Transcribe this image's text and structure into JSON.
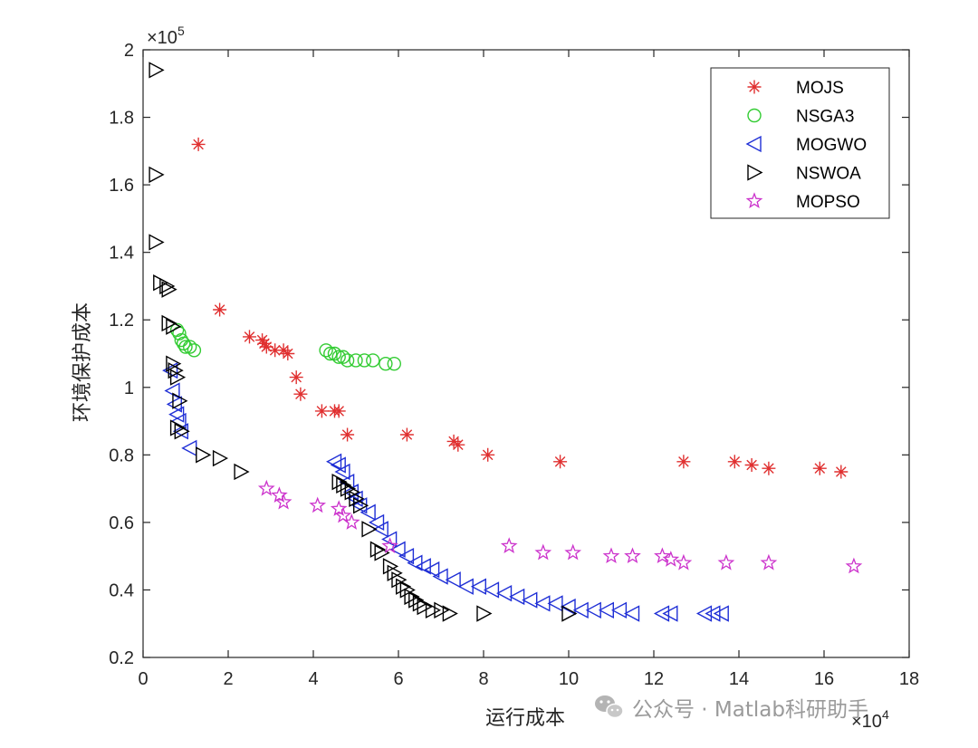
{
  "chart_data": {
    "type": "scatter",
    "title": "",
    "xlabel": "运行成本",
    "ylabel": "环境保护成本",
    "x_exponent": "×10",
    "x_exponent_power": "4",
    "y_exponent": "×10",
    "y_exponent_power": "5",
    "xlim": [
      0,
      18
    ],
    "ylim": [
      0.2,
      2
    ],
    "xticks": [
      "0",
      "2",
      "4",
      "6",
      "8",
      "10",
      "12",
      "14",
      "16",
      "18"
    ],
    "yticks": [
      "0.2",
      "0.4",
      "0.6",
      "0.8",
      "1",
      "1.2",
      "1.4",
      "1.6",
      "1.8",
      "2"
    ],
    "grid": false,
    "legend_position": "top-right",
    "series": [
      {
        "name": "MOJS",
        "marker": "asterisk",
        "color": "#e03030",
        "points": [
          [
            1.3,
            1.72
          ],
          [
            1.8,
            1.23
          ],
          [
            2.5,
            1.15
          ],
          [
            2.8,
            1.14
          ],
          [
            2.85,
            1.13
          ],
          [
            2.9,
            1.12
          ],
          [
            3.1,
            1.11
          ],
          [
            3.3,
            1.11
          ],
          [
            3.4,
            1.1
          ],
          [
            3.6,
            1.03
          ],
          [
            3.7,
            0.98
          ],
          [
            4.2,
            0.93
          ],
          [
            4.5,
            0.93
          ],
          [
            4.6,
            0.93
          ],
          [
            4.8,
            0.86
          ],
          [
            6.2,
            0.86
          ],
          [
            7.3,
            0.84
          ],
          [
            7.4,
            0.83
          ],
          [
            8.1,
            0.8
          ],
          [
            9.8,
            0.78
          ],
          [
            12.7,
            0.78
          ],
          [
            13.9,
            0.78
          ],
          [
            14.3,
            0.77
          ],
          [
            14.7,
            0.76
          ],
          [
            15.9,
            0.76
          ],
          [
            16.4,
            0.75
          ]
        ]
      },
      {
        "name": "NSGA3",
        "marker": "circle",
        "color": "#33cc33",
        "points": [
          [
            0.8,
            1.17
          ],
          [
            0.85,
            1.16
          ],
          [
            0.9,
            1.14
          ],
          [
            0.95,
            1.13
          ],
          [
            1.0,
            1.12
          ],
          [
            1.1,
            1.12
          ],
          [
            1.2,
            1.11
          ],
          [
            4.3,
            1.11
          ],
          [
            4.4,
            1.1
          ],
          [
            4.5,
            1.1
          ],
          [
            4.6,
            1.09
          ],
          [
            4.7,
            1.09
          ],
          [
            4.8,
            1.08
          ],
          [
            5.0,
            1.08
          ],
          [
            5.2,
            1.08
          ],
          [
            5.4,
            1.08
          ],
          [
            5.7,
            1.07
          ],
          [
            5.9,
            1.07
          ]
        ]
      },
      {
        "name": "MOGWO",
        "marker": "triangle-left",
        "color": "#1f2fd6",
        "points": [
          [
            0.65,
            1.05
          ],
          [
            0.7,
            0.99
          ],
          [
            0.75,
            0.95
          ],
          [
            0.8,
            0.92
          ],
          [
            0.85,
            0.9
          ],
          [
            0.9,
            0.87
          ],
          [
            1.1,
            0.82
          ],
          [
            4.5,
            0.78
          ],
          [
            4.6,
            0.77
          ],
          [
            4.7,
            0.75
          ],
          [
            4.8,
            0.72
          ],
          [
            4.9,
            0.69
          ],
          [
            5.0,
            0.67
          ],
          [
            5.1,
            0.65
          ],
          [
            5.3,
            0.63
          ],
          [
            5.5,
            0.6
          ],
          [
            5.6,
            0.58
          ],
          [
            5.8,
            0.55
          ],
          [
            6.0,
            0.52
          ],
          [
            6.2,
            0.5
          ],
          [
            6.4,
            0.48
          ],
          [
            6.6,
            0.47
          ],
          [
            6.8,
            0.46
          ],
          [
            7.0,
            0.44
          ],
          [
            7.3,
            0.43
          ],
          [
            7.6,
            0.41
          ],
          [
            7.9,
            0.41
          ],
          [
            8.2,
            0.4
          ],
          [
            8.5,
            0.39
          ],
          [
            8.8,
            0.38
          ],
          [
            9.1,
            0.37
          ],
          [
            9.4,
            0.36
          ],
          [
            9.7,
            0.36
          ],
          [
            10.0,
            0.35
          ],
          [
            10.3,
            0.34
          ],
          [
            10.6,
            0.34
          ],
          [
            10.9,
            0.34
          ],
          [
            11.2,
            0.34
          ],
          [
            11.5,
            0.33
          ],
          [
            12.2,
            0.33
          ],
          [
            12.4,
            0.33
          ],
          [
            13.2,
            0.33
          ],
          [
            13.4,
            0.33
          ],
          [
            13.6,
            0.33
          ]
        ]
      },
      {
        "name": "NSWOA",
        "marker": "triangle-right",
        "color": "#000000",
        "points": [
          [
            0.3,
            1.94
          ],
          [
            0.3,
            1.63
          ],
          [
            0.3,
            1.43
          ],
          [
            0.4,
            1.31
          ],
          [
            0.55,
            1.3
          ],
          [
            0.6,
            1.29
          ],
          [
            0.6,
            1.19
          ],
          [
            0.7,
            1.18
          ],
          [
            0.7,
            1.07
          ],
          [
            0.75,
            1.05
          ],
          [
            0.8,
            1.03
          ],
          [
            0.85,
            0.96
          ],
          [
            0.8,
            0.88
          ],
          [
            0.9,
            0.87
          ],
          [
            1.4,
            0.8
          ],
          [
            1.8,
            0.79
          ],
          [
            2.3,
            0.75
          ],
          [
            4.6,
            0.72
          ],
          [
            4.7,
            0.71
          ],
          [
            4.8,
            0.7
          ],
          [
            4.9,
            0.69
          ],
          [
            5.0,
            0.67
          ],
          [
            5.1,
            0.65
          ],
          [
            5.3,
            0.58
          ],
          [
            5.5,
            0.52
          ],
          [
            5.6,
            0.51
          ],
          [
            5.8,
            0.47
          ],
          [
            5.9,
            0.45
          ],
          [
            6.0,
            0.43
          ],
          [
            6.1,
            0.41
          ],
          [
            6.2,
            0.4
          ],
          [
            6.3,
            0.38
          ],
          [
            6.4,
            0.37
          ],
          [
            6.5,
            0.36
          ],
          [
            6.6,
            0.35
          ],
          [
            6.8,
            0.34
          ],
          [
            7.0,
            0.34
          ],
          [
            7.2,
            0.33
          ],
          [
            8.0,
            0.33
          ],
          [
            10.0,
            0.33
          ]
        ]
      },
      {
        "name": "MOPSO",
        "marker": "star",
        "color": "#cc33cc",
        "points": [
          [
            2.9,
            0.7
          ],
          [
            3.2,
            0.68
          ],
          [
            3.3,
            0.66
          ],
          [
            4.1,
            0.65
          ],
          [
            4.6,
            0.64
          ],
          [
            4.7,
            0.62
          ],
          [
            4.9,
            0.6
          ],
          [
            5.8,
            0.53
          ],
          [
            8.6,
            0.53
          ],
          [
            9.4,
            0.51
          ],
          [
            10.1,
            0.51
          ],
          [
            11.0,
            0.5
          ],
          [
            11.5,
            0.5
          ],
          [
            12.2,
            0.5
          ],
          [
            12.4,
            0.49
          ],
          [
            12.7,
            0.48
          ],
          [
            13.7,
            0.48
          ],
          [
            14.7,
            0.48
          ],
          [
            16.7,
            0.47
          ]
        ]
      }
    ]
  },
  "watermark": {
    "text": "公众号 · Matlab科研助手",
    "icon": "wechat-icon",
    "color": "#9a9a9a"
  }
}
